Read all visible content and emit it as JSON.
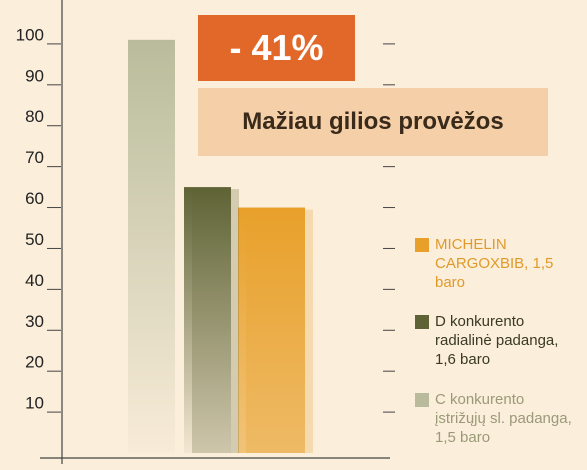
{
  "chart_data": {
    "type": "bar",
    "annotations": [
      "- 41%",
      "Mažiau gilios provėžos"
    ],
    "series": [
      {
        "name": "MICHELIN CARGOXBIB, 1,5 baro",
        "color": "#e8a02a",
        "text_color": "#e09a2a",
        "values": [
          60
        ]
      },
      {
        "name": "D konkurento radialinė padanga, 1,6 baro",
        "color": "#5e6335",
        "text_color": "#3a3a24",
        "values": [
          65
        ]
      },
      {
        "name": "C konkurento įstrižųjų sl. padanga, 1,5 baro",
        "color": "#b9bc9c",
        "text_color": "#9a9a78",
        "values": [
          101
        ]
      }
    ],
    "ylim": [
      0,
      110
    ],
    "yticks": [
      10,
      20,
      30,
      40,
      50,
      60,
      70,
      80,
      90,
      100
    ]
  }
}
